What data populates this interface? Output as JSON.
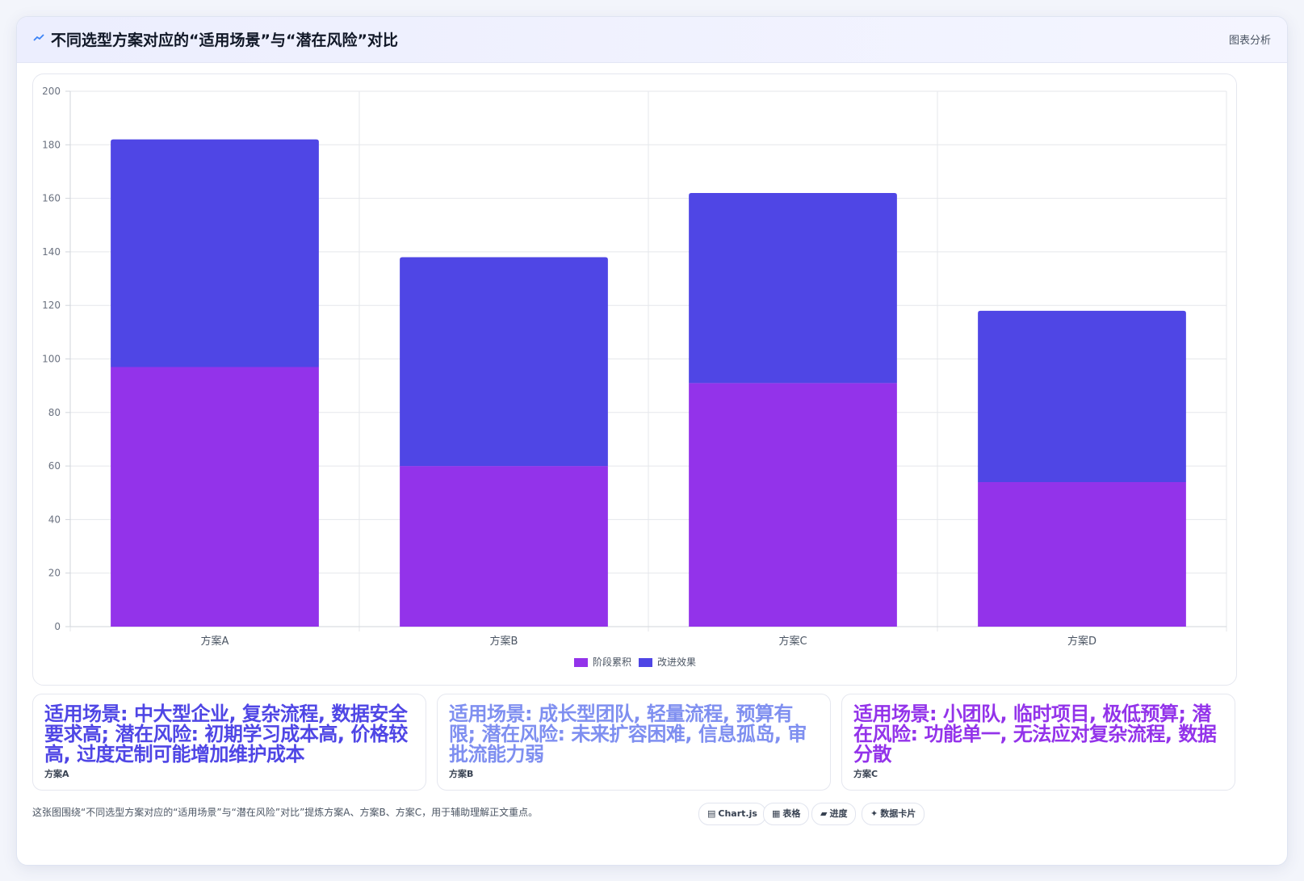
{
  "header": {
    "title": "不同选型方案对应的“适用场景”与“潜在风险”对比",
    "tag": "图表分析"
  },
  "colors": {
    "series1": "#9333ea",
    "series2": "#4f46e5",
    "note_a": "#4f46e5",
    "note_b": "#7f8ff0",
    "note_c": "#9333ea"
  },
  "chart_data": {
    "type": "bar",
    "stacked": true,
    "categories": [
      "方案A",
      "方案B",
      "方案C",
      "方案D"
    ],
    "series": [
      {
        "name": "阶段累积",
        "values": [
          97,
          60,
          91,
          54
        ]
      },
      {
        "name": "改进效果",
        "values": [
          85,
          78,
          71,
          64
        ]
      }
    ],
    "ylim": [
      0,
      200
    ],
    "yticks": [
      0,
      20,
      40,
      60,
      80,
      100,
      120,
      140,
      160,
      180,
      200
    ],
    "grid": true,
    "legend": "bottom"
  },
  "notes": [
    {
      "text": "适用场景: 中大型企业, 复杂流程, 数据安全要求高; 潜在风险: 初期学习成本高, 价格较高, 过度定制可能增加维护成本",
      "label": "方案A"
    },
    {
      "text": "适用场景: 成长型团队, 轻量流程, 预算有限; 潜在风险: 未来扩容困难, 信息孤岛, 审批流能力弱",
      "label": "方案B"
    },
    {
      "text": "适用场景: 小团队, 临时项目, 极低预算; 潜在风险: 功能单一, 无法应对复杂流程, 数据分散",
      "label": "方案C"
    }
  ],
  "footer": {
    "description": "这张图围绕“不同选型方案对应的“适用场景”与“潜在风险”对比”提炼方案A、方案B、方案C，用于辅助理解正文重点。",
    "pills": [
      {
        "icon": "chart-icon",
        "label": "Chart.js"
      },
      {
        "icon": "table-icon",
        "label": "表格"
      },
      {
        "icon": "progress-icon",
        "label": "进度"
      },
      {
        "icon": "card-icon",
        "label": "数据卡片"
      }
    ]
  }
}
